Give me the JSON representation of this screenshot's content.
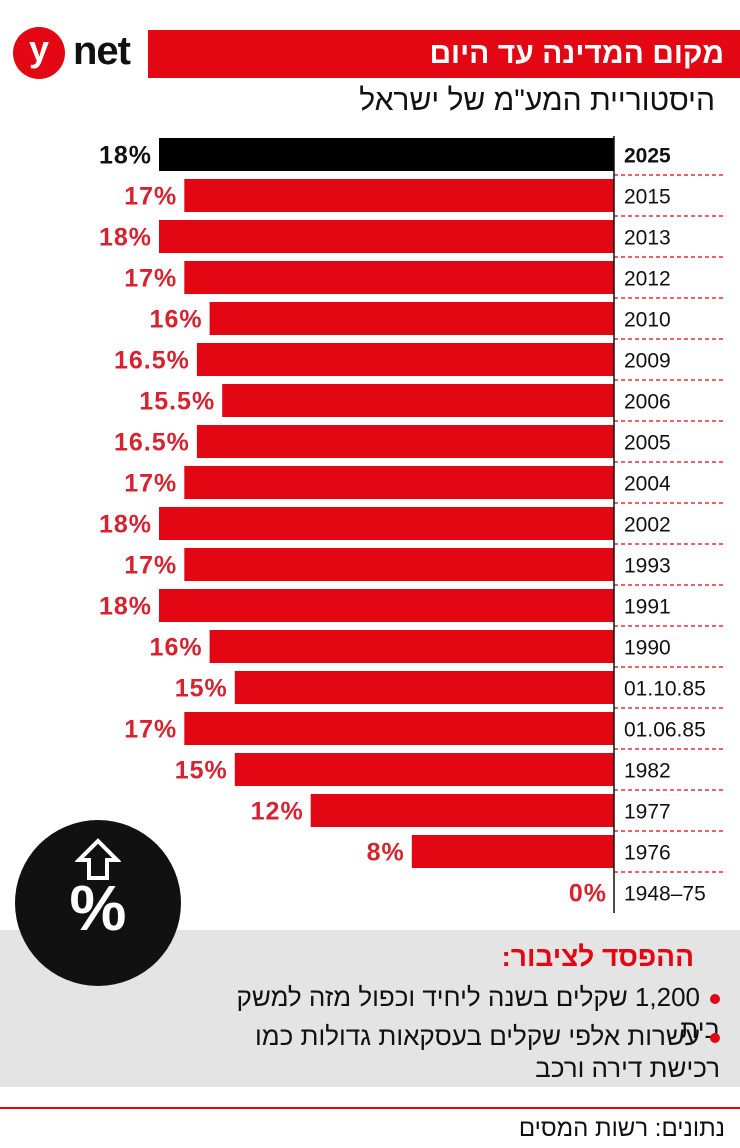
{
  "brand": {
    "logo_y": "y",
    "logo_net": "net"
  },
  "header": {
    "title": "מקום המדינה עד היום",
    "subtitle": "היסטוריית המע\"מ של ישראל"
  },
  "chart_data": {
    "type": "bar",
    "orientation": "horizontal",
    "title": "היסטוריית המע\"מ של ישראל",
    "unit": "%",
    "categories": [
      "2025",
      "2015",
      "2013",
      "2012",
      "2010",
      "2009",
      "2006",
      "2005",
      "2004",
      "2002",
      "1993",
      "1991",
      "1990",
      "01.10.85",
      "01.06.85",
      "1982",
      "1977",
      "1976",
      "1948–75"
    ],
    "values": [
      18,
      17,
      18,
      17,
      16,
      16.5,
      15.5,
      16.5,
      17,
      18,
      17,
      18,
      16,
      15,
      17,
      15,
      12,
      8,
      0
    ],
    "labels": [
      "18%",
      "17%",
      "18%",
      "17%",
      "16%",
      "16.5%",
      "15.5%",
      "16.5%",
      "17%",
      "18%",
      "17%",
      "18%",
      "16%",
      "15%",
      "17%",
      "15%",
      "12%",
      "8%",
      "0%"
    ],
    "highlight_index": 0,
    "colors": {
      "highlight": "#000000",
      "bar": "#e30613",
      "label_highlight": "#111111",
      "label": "#d7232f"
    },
    "xlim": [
      0,
      18
    ]
  },
  "badge": {
    "symbol": "%"
  },
  "public_loss": {
    "title": "ההפסד לציבור:",
    "items": [
      "1,200 שקלים בשנה ליחיד וכפול מזה למשק בית",
      "עשרות אלפי שקלים בעסקאות גדולות כמו רכישת דירה ורכב"
    ]
  },
  "source": "נתונים: רשות המסים"
}
